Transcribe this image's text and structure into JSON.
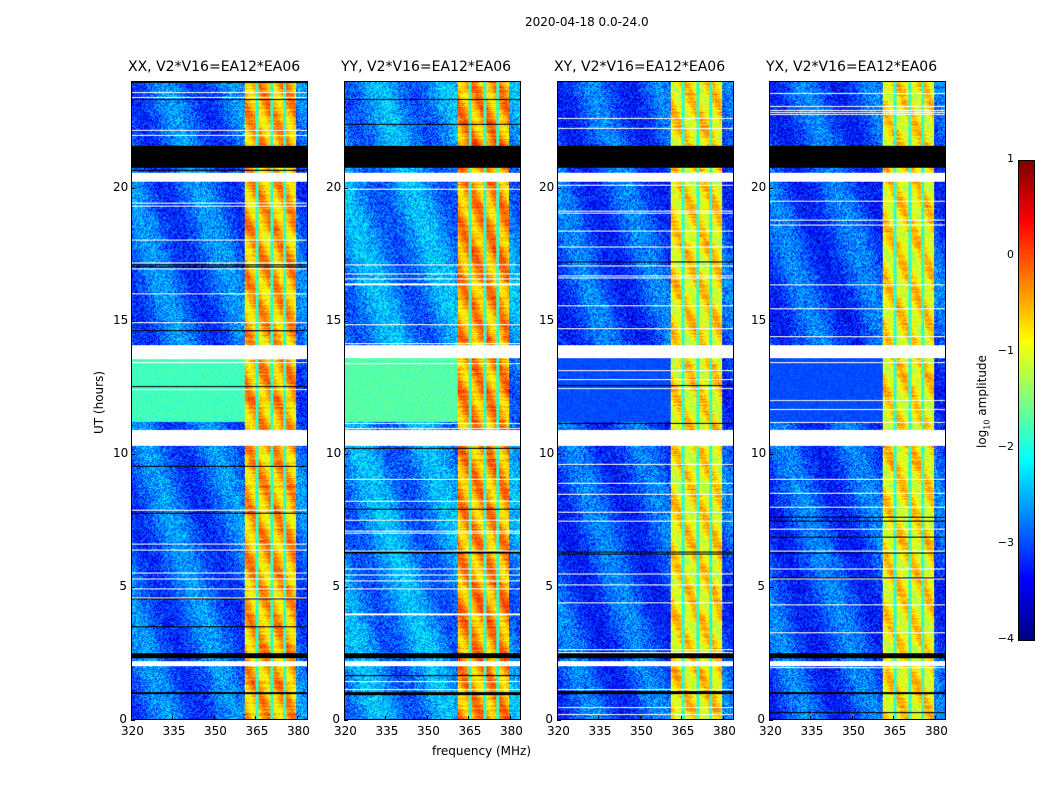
{
  "suptitle": "2020-04-18 0.0-24.0",
  "xlabel": "frequency (MHz)",
  "ylabel": "UT (hours)",
  "chart_data": [
    {
      "type": "heatmap",
      "title": "XX, V2*V16=EA12*EA06",
      "xlim": [
        320,
        384
      ],
      "ylim": [
        0,
        24
      ],
      "xticks": [
        320,
        335,
        350,
        365,
        380
      ],
      "yticks": [
        0,
        5,
        10,
        15,
        20
      ],
      "background_log_amp": -2.9,
      "rfi_band_mhz": [
        361,
        380
      ],
      "rfi_log_amp": -0.5,
      "mid_block_hours": [
        11.2,
        13.6
      ],
      "mid_block_log_amp": -1.8
    },
    {
      "type": "heatmap",
      "title": "YY, V2*V16=EA12*EA06",
      "xlim": [
        320,
        384
      ],
      "ylim": [
        0,
        24
      ],
      "xticks": [
        320,
        335,
        350,
        365,
        380
      ],
      "yticks": [
        0,
        5,
        10,
        15,
        20
      ],
      "background_log_amp": -2.7,
      "rfi_band_mhz": [
        361,
        380
      ],
      "rfi_log_amp": -0.4,
      "mid_block_hours": [
        11.2,
        13.6
      ],
      "mid_block_log_amp": -1.7
    },
    {
      "type": "heatmap",
      "title": "XY, V2*V16=EA12*EA06",
      "xlim": [
        320,
        384
      ],
      "ylim": [
        0,
        24
      ],
      "xticks": [
        320,
        335,
        350,
        365,
        380
      ],
      "yticks": [
        0,
        5,
        10,
        15,
        20
      ],
      "background_log_amp": -3.0,
      "rfi_band_mhz": [
        361,
        380
      ],
      "rfi_log_amp": -0.8,
      "mid_block_hours": [
        11.2,
        13.6
      ],
      "mid_block_log_amp": -3.0
    },
    {
      "type": "heatmap",
      "title": "YX, V2*V16=EA12*EA06",
      "xlim": [
        320,
        384
      ],
      "ylim": [
        0,
        24
      ],
      "xticks": [
        320,
        335,
        350,
        365,
        380
      ],
      "yticks": [
        0,
        5,
        10,
        15,
        20
      ],
      "background_log_amp": -3.0,
      "rfi_band_mhz": [
        361,
        380
      ],
      "rfi_log_amp": -0.8,
      "mid_block_hours": [
        11.2,
        13.6
      ],
      "mid_block_log_amp": -3.0
    }
  ],
  "colorbar": {
    "label": "log10 amplitude",
    "label_base": "log",
    "label_sub": "10",
    "label_rest": " amplitude",
    "range": [
      -4,
      1
    ],
    "ticks": [
      "1",
      "0",
      "−1",
      "−2",
      "−3",
      "−4"
    ],
    "colormap": "jet"
  },
  "flags": {
    "black_hours": [
      [
        20.8,
        21.6
      ],
      [
        2.3,
        2.5
      ],
      [
        0.95,
        1.05
      ]
    ],
    "white_hours": [
      [
        20.25,
        20.6
      ],
      [
        2.0,
        2.2
      ],
      [
        10.3,
        10.9
      ],
      [
        13.6,
        14.1
      ]
    ]
  }
}
